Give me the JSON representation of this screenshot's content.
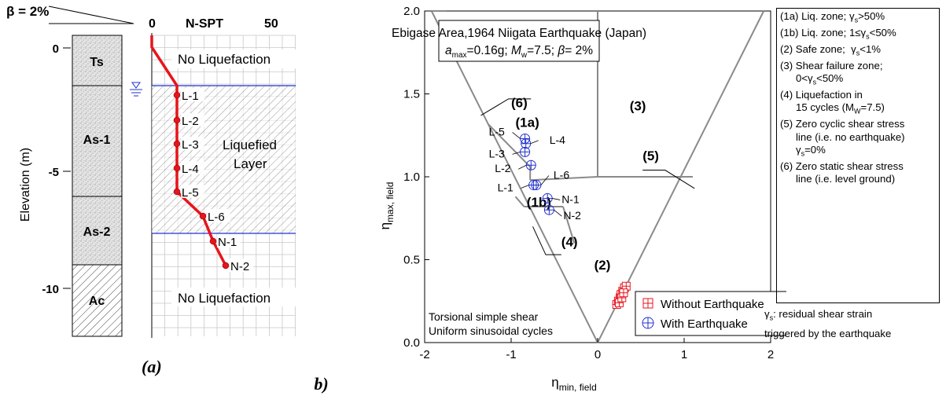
{
  "panel_a": {
    "beta_label": "β = 2%",
    "nspt_label": "N-SPT",
    "nspt_zero": "0",
    "nspt_fifty": "50",
    "ylabel": "Elevation (m)",
    "ticks": [
      "0",
      "-5",
      "-10"
    ],
    "layers": [
      "Ts",
      "As-1",
      "As-2",
      "Ac"
    ],
    "zone_top": "No Liquefaction",
    "zone_mid_1": "Liquefied",
    "zone_mid_2": "Layer",
    "zone_bottom": "No Liquefaction",
    "caption": "(a)",
    "points": [
      "L-1",
      "L-2",
      "L-3",
      "L-4",
      "L-5",
      "L-6",
      "N-1",
      "N-2"
    ],
    "line_color": "#e8141c"
  },
  "chart_data": {
    "type": "scatter",
    "title_line1": "Ebigase Area,1964 Niigata Earthquake (Japan)",
    "title_line2": "amax=0.16g; Mw=7.5; β= 2%",
    "xlabel": "ηmin, field",
    "ylabel": "ηmax, field",
    "xlim": [
      -2,
      2
    ],
    "ylim": [
      0,
      2.0
    ],
    "xticks": [
      "-2",
      "-1",
      "0",
      "1",
      "2"
    ],
    "yticks": [
      "0.0",
      "0.5",
      "1.0",
      "1.5",
      "2.0"
    ],
    "zone_labels": [
      "(1a)",
      "(1b)",
      "(2)",
      "(3)",
      "(4)",
      "(5)",
      "(6)"
    ],
    "note_line1": "Torsional simple shear",
    "note_line2": "Uniform sinusoidal cycles",
    "series": [
      {
        "name": "Without Earthquake",
        "color": "#e8141c",
        "marker": "square-plus",
        "points": [
          [
            0.22,
            0.23
          ],
          [
            0.24,
            0.25
          ],
          [
            0.26,
            0.27
          ],
          [
            0.27,
            0.29
          ],
          [
            0.29,
            0.31
          ],
          [
            0.31,
            0.33
          ],
          [
            0.33,
            0.34
          ],
          [
            0.25,
            0.24
          ],
          [
            0.28,
            0.27
          ],
          [
            0.3,
            0.3
          ]
        ]
      },
      {
        "name": "With Earthquake",
        "color": "#2030d0",
        "marker": "circle-plus",
        "labels": [
          "L-1",
          "L-2",
          "L-3",
          "L-4",
          "L-5",
          "L-6",
          "N-1",
          "N-2"
        ],
        "points": [
          [
            -0.74,
            0.95
          ],
          [
            -0.77,
            1.07
          ],
          [
            -0.84,
            1.15
          ],
          [
            -0.83,
            1.2
          ],
          [
            -0.84,
            1.23
          ],
          [
            -0.71,
            0.95
          ],
          [
            -0.58,
            0.87
          ],
          [
            -0.56,
            0.8
          ]
        ]
      }
    ],
    "caption": "(b)"
  },
  "legend_right": [
    "(1a) Liq. zone; γs>50%",
    "(1b) Liq. zone; 1≤γs<50%",
    "(2) Safe zone;  γs<1%",
    "(3) Shear failure zone;",
    "0<γs<50%",
    "(4) Liquefaction in",
    "15 cycles (MW=7.5)",
    "(5) Zero cyclic shear stress",
    "line (i.e. no earthquake)",
    "γs=0%",
    "(6) Zero static shear stress",
    "line (i.e. level ground)"
  ],
  "gamma_note_1": "γs: residual shear strain",
  "gamma_note_2": "triggered by the earthquake"
}
